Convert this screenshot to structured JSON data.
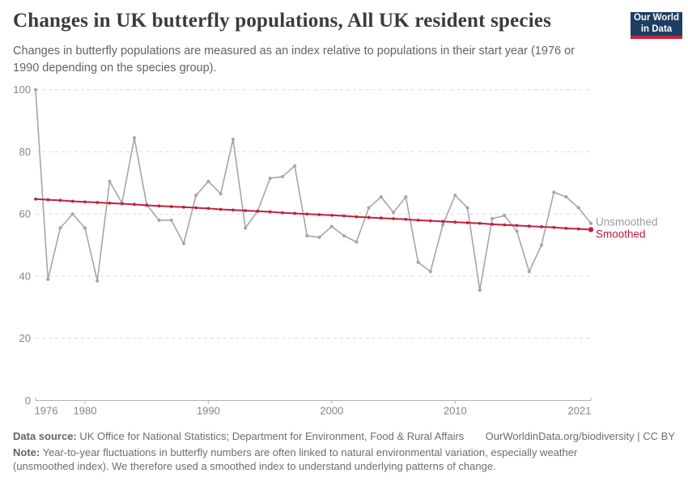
{
  "chart_data": {
    "type": "line",
    "title": "Changes in UK butterfly populations, All UK resident species",
    "subtitle": "Changes in butterfly populations are measured as an index relative to populations in their start year (1976 or 1990 depending on the species group).",
    "xlabel": "",
    "ylabel": "",
    "ylim": [
      0,
      100
    ],
    "yticks": [
      0,
      20,
      40,
      60,
      80,
      100
    ],
    "xticks": [
      1976,
      1980,
      1990,
      2000,
      2010,
      2021
    ],
    "grid": "horizontal-dashed",
    "legend_position": "end-of-line-labels",
    "x": [
      1976,
      1977,
      1978,
      1979,
      1980,
      1981,
      1982,
      1983,
      1984,
      1985,
      1986,
      1987,
      1988,
      1989,
      1990,
      1991,
      1992,
      1993,
      1994,
      1995,
      1996,
      1997,
      1998,
      1999,
      2000,
      2001,
      2002,
      2003,
      2004,
      2005,
      2006,
      2007,
      2008,
      2009,
      2010,
      2011,
      2012,
      2013,
      2014,
      2015,
      2016,
      2017,
      2018,
      2019,
      2020,
      2021
    ],
    "series": [
      {
        "name": "Unsmoothed",
        "color": "#a6a6a6",
        "label_color": "#9c9c9c",
        "values": [
          100,
          39,
          55.5,
          60,
          55.5,
          38.5,
          70.5,
          63.5,
          84.5,
          63,
          58,
          58,
          50.5,
          66,
          70.5,
          66.5,
          84,
          55.5,
          61,
          71.5,
          72,
          75.5,
          53,
          52.5,
          56,
          53,
          51,
          62,
          65.5,
          60.5,
          65.5,
          44.5,
          41.5,
          56.5,
          66,
          62,
          35.5,
          58.5,
          59.5,
          54.5,
          41.5,
          50,
          67,
          65.5,
          62,
          57
        ]
      },
      {
        "name": "Smoothed",
        "color": "#bf223b",
        "label_color": "#c01a38",
        "values": [
          64.8,
          64.6,
          64.4,
          64.1,
          63.9,
          63.7,
          63.5,
          63.3,
          63.1,
          62.8,
          62.6,
          62.4,
          62.2,
          62.0,
          61.8,
          61.5,
          61.3,
          61.1,
          60.9,
          60.7,
          60.4,
          60.2,
          60.0,
          59.8,
          59.6,
          59.4,
          59.1,
          58.9,
          58.7,
          58.5,
          58.3,
          58.0,
          57.8,
          57.6,
          57.4,
          57.2,
          57.0,
          56.7,
          56.5,
          56.3,
          56.1,
          55.9,
          55.7,
          55.4,
          55.2,
          55.0
        ]
      }
    ]
  },
  "header": {
    "logo": {
      "line1": "Our World",
      "line2": "in Data",
      "bg_color": "#1d3d63",
      "bar_color": "#c4223a"
    }
  },
  "footer": {
    "datasource_label": "Data source:",
    "datasource_text": " UK Office for National Statistics; Department for Environment, Food & Rural Affairs",
    "credit": "OurWorldinData.org/biodiversity | CC BY",
    "note_label": "Note:",
    "note_text": " Year-to-year fluctuations in butterfly numbers are often linked to natural environmental variation, especially weather (unsmoothed index). We therefore used a smoothed index to understand underlying patterns of change."
  }
}
